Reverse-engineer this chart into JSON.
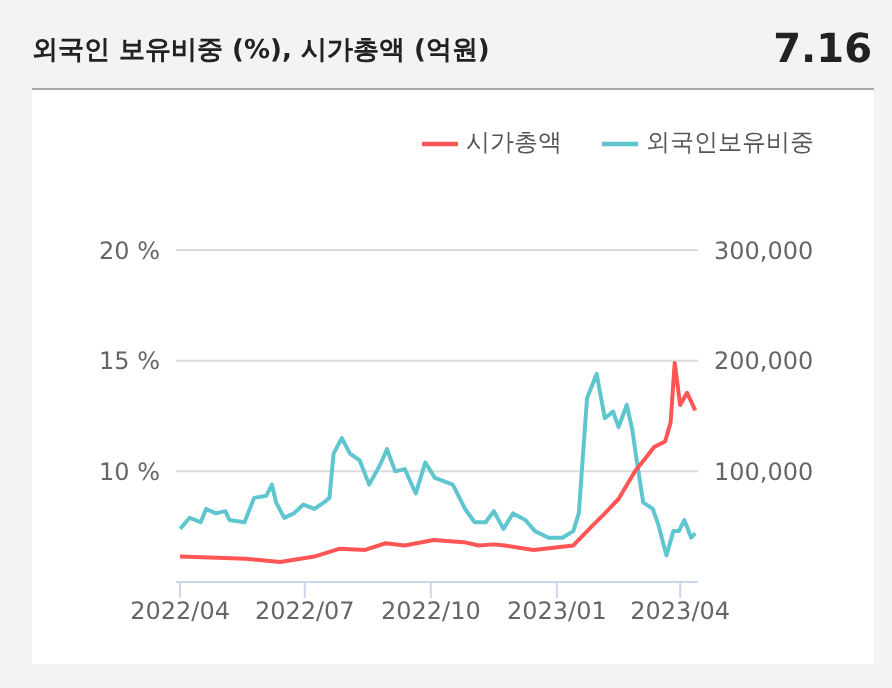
{
  "chart_data": {
    "type": "line",
    "title": "외국인 보유비중 (%), 시가총액 (억원)",
    "annotations": [
      "7.16"
    ],
    "xlim": [
      "2022-03-29",
      "2023-04-14"
    ],
    "xticks": [
      {
        "value": "2022-04-01",
        "label": "2022/04"
      },
      {
        "value": "2022-07-01",
        "label": "2022/07"
      },
      {
        "value": "2022-10-01",
        "label": "2022/10"
      },
      {
        "value": "2023-01-01",
        "label": "2023/01"
      },
      {
        "value": "2023-04-01",
        "label": "2023/04"
      }
    ],
    "ylim": [
      5,
      20
    ],
    "yticks": [
      {
        "value": 10,
        "label": "10 %"
      },
      {
        "value": 15,
        "label": "15 %"
      },
      {
        "value": 20,
        "label": "20 %"
      }
    ],
    "y2lim": [
      0,
      300000
    ],
    "y2ticks": [
      {
        "value": 100000,
        "label": "100,000"
      },
      {
        "value": 200000,
        "label": "200,000"
      },
      {
        "value": 300000,
        "label": "300,000"
      }
    ],
    "grid": "y",
    "legend": "top right",
    "marker": "none",
    "line_style": "solid",
    "series": [
      {
        "name": "외국인보유비중",
        "color": "#5fc6cf",
        "x": [
          "2022-04-01",
          "2022-04-08",
          "2022-04-16",
          "2022-04-20",
          "2022-04-27",
          "2022-05-04",
          "2022-05-07",
          "2022-05-18",
          "2022-05-25",
          "2022-06-03",
          "2022-06-07",
          "2022-06-10",
          "2022-06-16",
          "2022-06-23",
          "2022-06-30",
          "2022-07-08",
          "2022-07-15",
          "2022-07-19",
          "2022-07-22",
          "2022-07-28",
          "2022-08-03",
          "2022-08-10",
          "2022-08-17",
          "2022-08-25",
          "2022-08-30",
          "2022-09-05",
          "2022-09-12",
          "2022-09-20",
          "2022-09-27",
          "2022-10-04",
          "2022-10-17",
          "2022-10-26",
          "2022-11-02",
          "2022-11-10",
          "2022-11-16",
          "2022-11-23",
          "2022-11-30",
          "2022-12-09",
          "2022-12-16",
          "2022-12-26",
          "2023-01-05",
          "2023-01-13",
          "2023-01-17",
          "2023-01-23",
          "2023-01-30",
          "2023-02-05",
          "2023-02-11",
          "2023-02-15",
          "2023-02-21",
          "2023-02-25",
          "2023-02-28",
          "2023-03-05",
          "2023-03-12",
          "2023-03-16",
          "2023-03-22",
          "2023-03-27",
          "2023-03-31",
          "2023-04-04",
          "2023-04-09",
          "2023-04-12"
        ],
        "values": [
          7.4,
          7.9,
          7.7,
          8.3,
          8.1,
          8.2,
          7.8,
          7.7,
          8.8,
          8.9,
          9.4,
          8.6,
          7.9,
          8.1,
          8.5,
          8.3,
          8.6,
          8.8,
          10.8,
          11.5,
          10.8,
          10.5,
          9.4,
          10.3,
          11.0,
          10.0,
          10.1,
          9.0,
          10.4,
          9.7,
          9.4,
          8.3,
          7.7,
          7.7,
          8.2,
          7.4,
          8.1,
          7.8,
          7.3,
          7.0,
          7.0,
          7.3,
          8.1,
          13.3,
          14.4,
          12.4,
          12.7,
          12.0,
          13.0,
          11.9,
          10.6,
          8.6,
          8.3,
          7.6,
          6.2,
          7.3,
          7.3,
          7.8,
          7.0,
          7.2
        ]
      },
      {
        "name": "시가총액",
        "color": "#ff5555",
        "axis": "y2",
        "x": [
          "2022-04-01",
          "2022-05-19",
          "2022-06-13",
          "2022-07-08",
          "2022-07-26",
          "2022-08-14",
          "2022-08-29",
          "2022-09-12",
          "2022-10-03",
          "2022-10-25",
          "2022-11-05",
          "2022-11-16",
          "2022-11-24",
          "2022-12-15",
          "2023-01-13",
          "2023-01-27",
          "2023-02-05",
          "2023-02-15",
          "2023-02-27",
          "2023-03-06",
          "2023-03-13",
          "2023-03-21",
          "2023-03-25",
          "2023-03-28",
          "2023-04-01",
          "2023-04-06",
          "2023-04-12"
        ],
        "values": [
          23000,
          21000,
          18000,
          23000,
          30000,
          29000,
          35000,
          33000,
          38000,
          36000,
          33000,
          34000,
          33000,
          29000,
          33000,
          51000,
          62000,
          75000,
          100000,
          111000,
          122000,
          127000,
          144000,
          198000,
          160000,
          171000,
          155000
        ]
      }
    ]
  }
}
